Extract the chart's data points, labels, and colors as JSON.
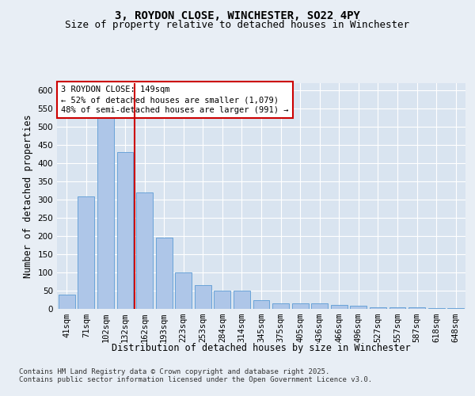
{
  "title_line1": "3, ROYDON CLOSE, WINCHESTER, SO22 4PY",
  "title_line2": "Size of property relative to detached houses in Winchester",
  "xlabel": "Distribution of detached houses by size in Winchester",
  "ylabel": "Number of detached properties",
  "categories": [
    "41sqm",
    "71sqm",
    "102sqm",
    "132sqm",
    "162sqm",
    "193sqm",
    "223sqm",
    "253sqm",
    "284sqm",
    "314sqm",
    "345sqm",
    "375sqm",
    "405sqm",
    "436sqm",
    "466sqm",
    "496sqm",
    "527sqm",
    "557sqm",
    "587sqm",
    "618sqm",
    "648sqm"
  ],
  "values": [
    40,
    310,
    550,
    430,
    320,
    195,
    100,
    65,
    50,
    50,
    25,
    15,
    15,
    15,
    10,
    8,
    5,
    5,
    5,
    2,
    2
  ],
  "bar_color": "#aec6e8",
  "bar_edge_color": "#5b9bd5",
  "vline_x": 3.5,
  "vline_color": "#cc0000",
  "annotation_text": "3 ROYDON CLOSE: 149sqm\n← 52% of detached houses are smaller (1,079)\n48% of semi-detached houses are larger (991) →",
  "annotation_box_color": "#ffffff",
  "annotation_box_edge": "#cc0000",
  "background_color": "#e8eef5",
  "plot_bg_color": "#d9e4f0",
  "grid_color": "#ffffff",
  "ylim": [
    0,
    620
  ],
  "yticks": [
    0,
    50,
    100,
    150,
    200,
    250,
    300,
    350,
    400,
    450,
    500,
    550,
    600
  ],
  "footer_text": "Contains HM Land Registry data © Crown copyright and database right 2025.\nContains public sector information licensed under the Open Government Licence v3.0.",
  "title_fontsize": 10,
  "subtitle_fontsize": 9,
  "axis_label_fontsize": 8.5,
  "tick_fontsize": 7.5,
  "annotation_fontsize": 7.5,
  "footer_fontsize": 6.5
}
